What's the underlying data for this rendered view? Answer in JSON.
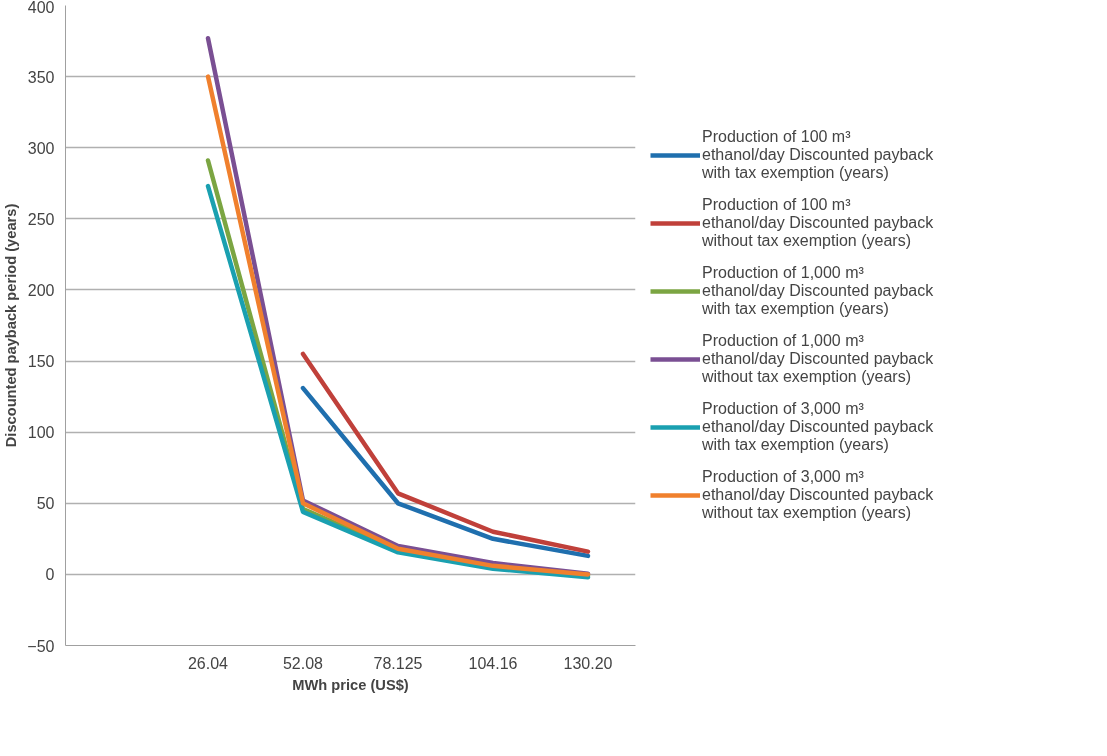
{
  "chart_data": {
    "type": "line",
    "xlabel": "MWh price (US$)",
    "ylabel": "Discounted payback period (years)",
    "categories": [
      null,
      "26.04",
      "52.08",
      "78.125",
      "104.16",
      "130.20"
    ],
    "ylim": [
      -50,
      400
    ],
    "yticks": [
      -50,
      0,
      50,
      100,
      150,
      200,
      250,
      300,
      350,
      400
    ],
    "grid": "y",
    "legend": "right",
    "marker": "none",
    "line_style": "solid",
    "series": [
      {
        "name": "Production of 100 m³ ethanol/day Discounted payback with tax exemption (years)",
        "color": "#1f6fae",
        "values": [
          null,
          null,
          131,
          50,
          25,
          13
        ]
      },
      {
        "name": "Production of 100 m³ ethanol/day Discounted payback without tax exemption (years)",
        "color": "#c0403a",
        "values": [
          null,
          null,
          155,
          57,
          30,
          16
        ]
      },
      {
        "name": "Production of 1,000 m³ ethanol/day Discounted payback with tax exemption (years)",
        "color": "#7ba542",
        "values": [
          null,
          291,
          46,
          17,
          5,
          -1
        ]
      },
      {
        "name": "Production of 1,000 m³ ethanol/day Discounted payback without tax exemption (years)",
        "color": "#7a4f93",
        "values": [
          null,
          377,
          52,
          20,
          8,
          0.5
        ]
      },
      {
        "name": "Production of 3,000 m³ ethanol/day Discounted payback with tax exemption (years)",
        "color": "#1aa0b0",
        "values": [
          null,
          273,
          44,
          15.5,
          4,
          -2
        ]
      },
      {
        "name": "Production of 3,000 m³ ethanol/day Discounted payback without tax exemption (years)",
        "color": "#f0802d",
        "values": [
          null,
          350,
          50,
          18,
          6,
          0
        ]
      }
    ]
  }
}
